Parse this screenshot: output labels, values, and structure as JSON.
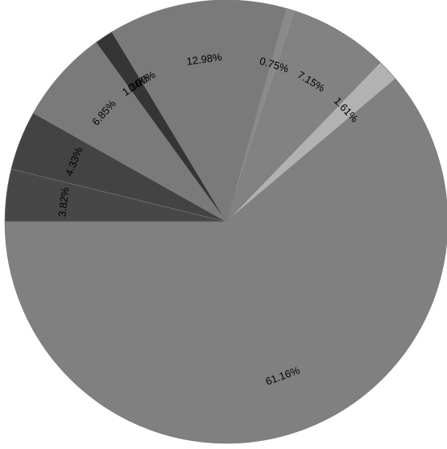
{
  "chart_data": {
    "type": "pie",
    "start_angle_deg": 180,
    "direction": "clockwise",
    "labels_inside": true,
    "label_rotation": "radial",
    "slices": [
      {
        "label": "3.82%",
        "value": 3.82,
        "color": "#474747"
      },
      {
        "label": "4.33%",
        "value": 4.33,
        "color": "#434343"
      },
      {
        "label": "6.85%",
        "value": 6.85,
        "color": "#7a7a7a"
      },
      {
        "label": "1.36%",
        "value": 1.36,
        "color": "#353535"
      },
      {
        "label": "0.00%",
        "value": 0.0,
        "color": "#7a7a7a"
      },
      {
        "label": "12.98%",
        "value": 12.98,
        "color": "#7a7a7a"
      },
      {
        "label": "0.75%",
        "value": 0.75,
        "color": "#8a8a8a"
      },
      {
        "label": "7.15%",
        "value": 7.15,
        "color": "#828282"
      },
      {
        "label": "1.61%",
        "value": 1.61,
        "color": "#b2b2b2"
      },
      {
        "label": "61.16%",
        "value": 61.16,
        "color": "#808080"
      }
    ]
  }
}
